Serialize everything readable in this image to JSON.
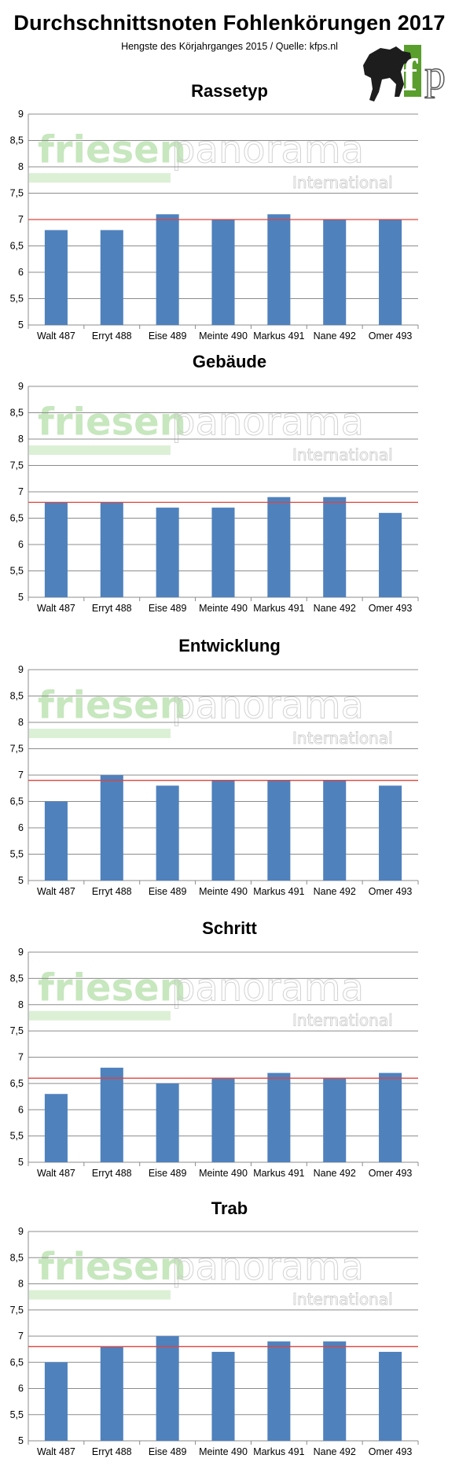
{
  "header": {
    "title": "Durchschnittsnoten Fohlenkörungen 2017",
    "subtitle": "Hengste des Körjahrganges 2015 / Quelle: kfps.nl"
  },
  "logo": {
    "text": "fp",
    "icon": "horse-logo"
  },
  "watermark": {
    "brand_left": "friesen",
    "brand_right": "panorama",
    "tagline": "International"
  },
  "colors": {
    "bar": "#4f81bd",
    "reference_line": "#e0433d",
    "grid": "#8c8c8c",
    "watermark_green": "#9bd48a"
  },
  "chart_data": [
    {
      "type": "bar",
      "title": "Rassetyp",
      "categories": [
        "Walt 487",
        "Erryt 488",
        "Eise 489",
        "Meinte 490",
        "Markus 491",
        "Nane 492",
        "Omer 493"
      ],
      "values": [
        6.8,
        6.8,
        7.1,
        7.0,
        7.1,
        7.0,
        7.0
      ],
      "reference_line": 7.0,
      "ylim": [
        5,
        9
      ],
      "yticks": [
        "5",
        "5,5",
        "6",
        "6,5",
        "7",
        "7,5",
        "8",
        "8,5",
        "9"
      ],
      "grid": true
    },
    {
      "type": "bar",
      "title": "Gebäude",
      "categories": [
        "Walt 487",
        "Erryt 488",
        "Eise 489",
        "Meinte 490",
        "Markus 491",
        "Nane 492",
        "Omer 493"
      ],
      "values": [
        6.8,
        6.8,
        6.7,
        6.7,
        6.9,
        6.9,
        6.6
      ],
      "reference_line": 6.8,
      "ylim": [
        5,
        9
      ],
      "yticks": [
        "5",
        "5,5",
        "6",
        "6,5",
        "7",
        "7,5",
        "8",
        "8,5",
        "9"
      ],
      "grid": true
    },
    {
      "type": "bar",
      "title": "Entwicklung",
      "categories": [
        "Walt 487",
        "Erryt 488",
        "Eise 489",
        "Meinte 490",
        "Markus 491",
        "Nane 492",
        "Omer 493"
      ],
      "values": [
        6.5,
        7.0,
        6.8,
        6.9,
        6.9,
        6.9,
        6.8
      ],
      "reference_line": 6.9,
      "ylim": [
        5,
        9
      ],
      "yticks": [
        "5",
        "5,5",
        "6",
        "6,5",
        "7",
        "7,5",
        "8",
        "8,5",
        "9"
      ],
      "grid": true
    },
    {
      "type": "bar",
      "title": "Schritt",
      "categories": [
        "Walt 487",
        "Erryt 488",
        "Eise 489",
        "Meinte 490",
        "Markus 491",
        "Nane 492",
        "Omer 493"
      ],
      "values": [
        6.3,
        6.8,
        6.5,
        6.6,
        6.7,
        6.6,
        6.7
      ],
      "reference_line": 6.6,
      "ylim": [
        5,
        9
      ],
      "yticks": [
        "5",
        "5,5",
        "6",
        "6,5",
        "7",
        "7,5",
        "8",
        "8,5",
        "9"
      ],
      "grid": true
    },
    {
      "type": "bar",
      "title": "Trab",
      "categories": [
        "Walt 487",
        "Erryt 488",
        "Eise 489",
        "Meinte 490",
        "Markus 491",
        "Nane 492",
        "Omer 493"
      ],
      "values": [
        6.5,
        6.8,
        7.0,
        6.7,
        6.9,
        6.9,
        6.7
      ],
      "reference_line": 6.8,
      "ylim": [
        5,
        9
      ],
      "yticks": [
        "5",
        "5,5",
        "6",
        "6,5",
        "7",
        "7,5",
        "8",
        "8,5",
        "9"
      ],
      "grid": true
    }
  ]
}
